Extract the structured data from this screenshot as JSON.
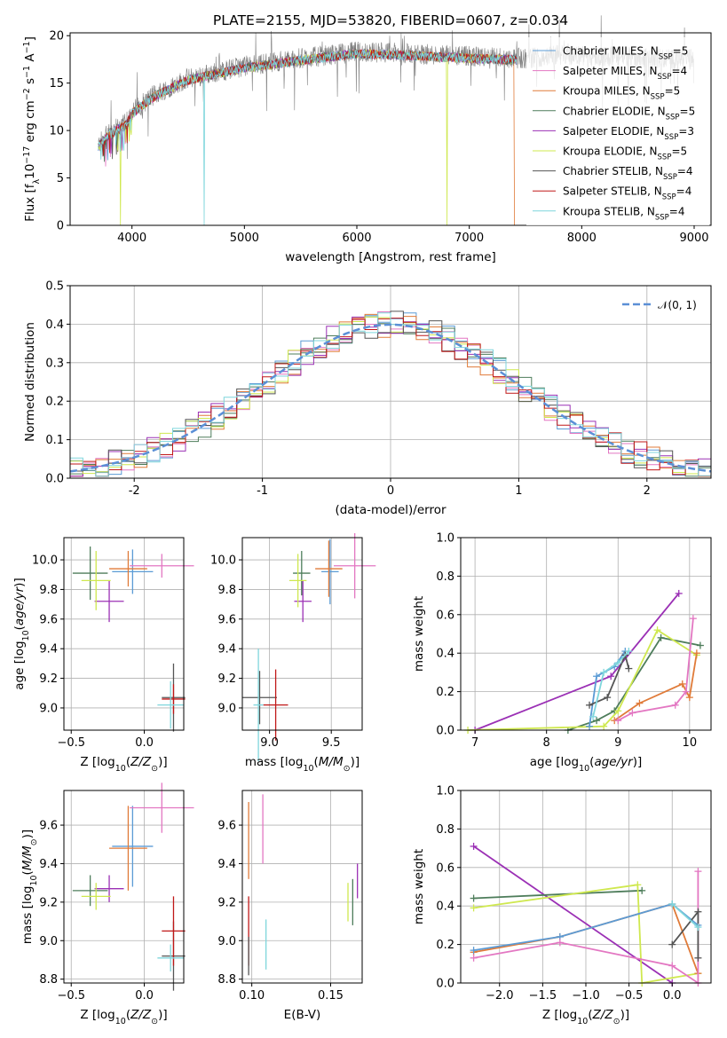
{
  "title": "PLATE=2155, MJD=53820, FIBERID=0607, z=0.034",
  "colors": {
    "chabrier_miles": "#5b9bd5",
    "salpeter_miles": "#e377c2",
    "kroupa_miles": "#e07b39",
    "chabrier_elodie": "#4e7d5b",
    "salpeter_elodie": "#9b30b5",
    "kroupa_elodie": "#cfe84f",
    "chabrier_stelib": "#555555",
    "salpeter_stelib": "#c01818",
    "kroupa_stelib": "#7fd6dc",
    "gaussian": "#5b8fd6"
  },
  "chart_data": [
    {
      "id": "spectrum",
      "type": "line",
      "xlabel": "wavelength [Angstrom, rest frame]",
      "ylabel": "Flux [f_λ10^-17 erg cm^-2 s^-1 A^-1]",
      "xlim": [
        3450,
        9150
      ],
      "ylim": [
        0,
        20.3
      ],
      "xticks": [
        4000,
        5000,
        6000,
        7000,
        8000,
        9000
      ],
      "yticks": [
        0,
        5,
        10,
        15,
        20
      ],
      "grid": false,
      "legend_position": "right",
      "legend": [
        {
          "key": "chabrier_miles",
          "label": "Chabrier MILES, N",
          "sub": "SSP",
          "tail": "=5"
        },
        {
          "key": "salpeter_miles",
          "label": "Salpeter MILES, N",
          "sub": "SSP",
          "tail": "=4"
        },
        {
          "key": "kroupa_miles",
          "label": "Kroupa MILES, N",
          "sub": "SSP",
          "tail": "=5"
        },
        {
          "key": "chabrier_elodie",
          "label": "Chabrier ELODIE, N",
          "sub": "SSP",
          "tail": "=5"
        },
        {
          "key": "salpeter_elodie",
          "label": "Salpeter ELODIE, N",
          "sub": "SSP",
          "tail": "=3"
        },
        {
          "key": "kroupa_elodie",
          "label": "Kroupa ELODIE, N",
          "sub": "SSP",
          "tail": "=5"
        },
        {
          "key": "chabrier_stelib",
          "label": "Chabrier STELIB, N",
          "sub": "SSP",
          "tail": "=4"
        },
        {
          "key": "salpeter_stelib",
          "label": "Salpeter STELIB, N",
          "sub": "SSP",
          "tail": "=4"
        },
        {
          "key": "kroupa_stelib",
          "label": "Kroupa STELIB, N",
          "sub": "SSP",
          "tail": "=4"
        }
      ],
      "continuum": [
        [
          3700,
          8.5
        ],
        [
          3800,
          9.8
        ],
        [
          3950,
          10.8
        ],
        [
          4000,
          12.0
        ],
        [
          4200,
          13.8
        ],
        [
          4500,
          15.5
        ],
        [
          5000,
          16.8
        ],
        [
          5500,
          17.6
        ],
        [
          6000,
          18.3
        ],
        [
          6500,
          18.1
        ],
        [
          7000,
          17.8
        ],
        [
          7500,
          17.6
        ],
        [
          7800,
          18.0
        ],
        [
          8000,
          17.9
        ],
        [
          8500,
          17.7
        ],
        [
          9000,
          17.5
        ]
      ],
      "model_range": [
        3700,
        7420
      ],
      "observed_range": [
        3700,
        9000
      ],
      "dropouts": [
        {
          "key": "kroupa_elodie",
          "from": 3900,
          "to": 3900
        },
        {
          "key": "kroupa_stelib",
          "from": 4640,
          "to": 4640
        },
        {
          "key": "kroupa_elodie",
          "from": 6800,
          "to": 6800
        },
        {
          "key": "kroupa_miles",
          "from": 7400,
          "to": 7440
        }
      ]
    },
    {
      "id": "residuals",
      "type": "histogram",
      "xlabel": "(data-model)/error",
      "ylabel": "Normed distribution",
      "xlim": [
        -2.5,
        2.5
      ],
      "ylim": [
        0,
        0.5
      ],
      "xticks": [
        -2,
        -1,
        0,
        1,
        2
      ],
      "yticks": [
        0.0,
        0.1,
        0.2,
        0.3,
        0.4,
        0.5
      ],
      "grid": true,
      "legend_position": "top-right",
      "legend_label": "𝒩(0, 1)",
      "bin_width": 0.1,
      "series_keys": [
        "chabrier_miles",
        "salpeter_miles",
        "kroupa_miles",
        "chabrier_elodie",
        "salpeter_elodie",
        "kroupa_elodie",
        "chabrier_stelib",
        "salpeter_stelib",
        "kroupa_stelib"
      ]
    },
    {
      "id": "age_vs_Z",
      "type": "errorbar",
      "xlabel": "Z [log10(Z/Z⊙)]",
      "ylabel": "age  [log10(age/yr)]",
      "xlim": [
        -0.55,
        0.27
      ],
      "ylim": [
        8.85,
        10.15
      ],
      "xticks": [
        -0.5,
        0.0
      ],
      "xticklabels": [
        "−0.5",
        "0.0"
      ],
      "yticks": [
        9.0,
        9.2,
        9.4,
        9.6,
        9.8,
        10.0
      ],
      "grid": true,
      "points": [
        {
          "key": "chabrier_miles",
          "x": -0.08,
          "xerr": 0.14,
          "y": 9.92,
          "yerr": 0.15
        },
        {
          "key": "salpeter_miles",
          "x": 0.12,
          "xerr": 0.22,
          "y": 9.96,
          "yerr": 0.08
        },
        {
          "key": "kroupa_miles",
          "x": -0.11,
          "xerr": 0.13,
          "y": 9.94,
          "yerr": 0.12
        },
        {
          "key": "chabrier_elodie",
          "x": -0.37,
          "xerr": 0.12,
          "y": 9.91,
          "yerr": 0.18
        },
        {
          "key": "salpeter_elodie",
          "x": -0.24,
          "xerr": 0.1,
          "y": 9.72,
          "yerr": 0.14
        },
        {
          "key": "kroupa_elodie",
          "x": -0.33,
          "xerr": 0.1,
          "y": 9.86,
          "yerr": 0.2
        },
        {
          "key": "chabrier_stelib",
          "x": 0.2,
          "xerr": 0.08,
          "y": 9.07,
          "yerr": 0.23
        },
        {
          "key": "salpeter_stelib",
          "x": 0.2,
          "xerr": 0.08,
          "y": 9.06,
          "yerr": 0.1
        },
        {
          "key": "kroupa_stelib",
          "x": 0.18,
          "xerr": 0.09,
          "y": 9.02,
          "yerr": 0.16
        }
      ]
    },
    {
      "id": "age_vs_mass",
      "type": "errorbar",
      "xlabel": "mass [log10(M/M⊙)]",
      "ylabel": "",
      "xlim": [
        8.78,
        9.75
      ],
      "ylim": [
        8.85,
        10.15
      ],
      "xticks": [
        9.0,
        9.5
      ],
      "xticklabels": [
        "9.0",
        "9.5"
      ],
      "yticks": [
        9.0,
        9.2,
        9.4,
        9.6,
        9.8,
        10.0
      ],
      "grid": true,
      "points": [
        {
          "key": "chabrier_miles",
          "x": 9.49,
          "xerr": 0.07,
          "y": 9.92,
          "yerr": 0.22
        },
        {
          "key": "salpeter_miles",
          "x": 9.69,
          "xerr": 0.17,
          "y": 9.96,
          "yerr": 0.22
        },
        {
          "key": "kroupa_miles",
          "x": 9.48,
          "xerr": 0.11,
          "y": 9.94,
          "yerr": 0.19
        },
        {
          "key": "chabrier_elodie",
          "x": 9.26,
          "xerr": 0.07,
          "y": 9.91,
          "yerr": 0.15
        },
        {
          "key": "salpeter_elodie",
          "x": 9.27,
          "xerr": 0.07,
          "y": 9.72,
          "yerr": 0.14
        },
        {
          "key": "kroupa_elodie",
          "x": 9.23,
          "xerr": 0.07,
          "y": 9.86,
          "yerr": 0.18
        },
        {
          "key": "chabrier_stelib",
          "x": 8.92,
          "xerr": 0.14,
          "y": 9.07,
          "yerr": 0.18
        },
        {
          "key": "salpeter_stelib",
          "x": 9.05,
          "xerr": 0.1,
          "y": 9.02,
          "yerr": 0.24
        },
        {
          "key": "kroupa_stelib",
          "x": 8.91,
          "xerr": 0.04,
          "y": 9.02,
          "yerr": 0.38
        }
      ]
    },
    {
      "id": "massweight_vs_age",
      "type": "line",
      "xlabel": "age  [log10(age/yr)]",
      "ylabel": "mass weight",
      "xlim": [
        6.8,
        10.3
      ],
      "ylim": [
        0,
        1.0
      ],
      "xticks": [
        7,
        8,
        9,
        10
      ],
      "xticklabels": [
        "7",
        "8",
        "9",
        "10"
      ],
      "yticks": [
        0.0,
        0.2,
        0.4,
        0.6,
        0.8,
        1.0
      ],
      "grid": true,
      "series": [
        {
          "key": "salpeter_elodie",
          "x": [
            7.0,
            8.9,
            9.85
          ],
          "y": [
            0.0,
            0.28,
            0.71
          ]
        },
        {
          "key": "chabrier_elodie",
          "x": [
            8.3,
            8.7,
            8.95,
            9.6,
            10.15
          ],
          "y": [
            0.0,
            0.05,
            0.1,
            0.48,
            0.44
          ]
        },
        {
          "key": "kroupa_elodie",
          "x": [
            6.9,
            8.8,
            9.0,
            9.55,
            10.1
          ],
          "y": [
            0.0,
            0.02,
            0.1,
            0.52,
            0.39
          ]
        },
        {
          "key": "chabrier_miles",
          "x": [
            8.6,
            8.7,
            8.95,
            9.1
          ],
          "y": [
            0.02,
            0.28,
            0.33,
            0.41
          ]
        },
        {
          "key": "kroupa_miles",
          "x": [
            8.95,
            9.3,
            9.9,
            10.0,
            10.1
          ],
          "y": [
            0.05,
            0.14,
            0.24,
            0.17,
            0.4
          ]
        },
        {
          "key": "salpeter_miles",
          "x": [
            9.0,
            9.2,
            9.8,
            9.95,
            10.05
          ],
          "y": [
            0.05,
            0.09,
            0.13,
            0.2,
            0.58
          ]
        },
        {
          "key": "chabrier_stelib",
          "x": [
            8.6,
            8.85,
            9.1,
            9.15
          ],
          "y": [
            0.13,
            0.17,
            0.39,
            0.32
          ]
        },
        {
          "key": "kroupa_stelib",
          "x": [
            8.65,
            8.8,
            9.0,
            9.15
          ],
          "y": [
            0.07,
            0.3,
            0.35,
            0.41
          ]
        }
      ]
    },
    {
      "id": "mass_vs_Z",
      "type": "errorbar",
      "xlabel": "Z [log10(Z/Z⊙)]",
      "ylabel": "mass [log10(M/M⊙)]",
      "xlim": [
        -0.55,
        0.27
      ],
      "ylim": [
        8.78,
        9.78
      ],
      "xticks": [
        -0.5,
        0.0
      ],
      "xticklabels": [
        "−0.5",
        "0.0"
      ],
      "yticks": [
        8.8,
        9.0,
        9.2,
        9.4,
        9.6
      ],
      "grid": true,
      "points": [
        {
          "key": "chabrier_miles",
          "x": -0.08,
          "xerr": 0.14,
          "y": 9.49,
          "yerr": 0.21
        },
        {
          "key": "salpeter_miles",
          "x": 0.12,
          "xerr": 0.22,
          "y": 9.69,
          "yerr": 0.13
        },
        {
          "key": "kroupa_miles",
          "x": -0.11,
          "xerr": 0.13,
          "y": 9.48,
          "yerr": 0.22
        },
        {
          "key": "chabrier_elodie",
          "x": -0.37,
          "xerr": 0.12,
          "y": 9.26,
          "yerr": 0.08
        },
        {
          "key": "salpeter_elodie",
          "x": -0.24,
          "xerr": 0.1,
          "y": 9.27,
          "yerr": 0.07
        },
        {
          "key": "kroupa_elodie",
          "x": -0.33,
          "xerr": 0.1,
          "y": 9.23,
          "yerr": 0.07
        },
        {
          "key": "chabrier_stelib",
          "x": 0.2,
          "xerr": 0.08,
          "y": 8.92,
          "yerr": 0.18
        },
        {
          "key": "salpeter_stelib",
          "x": 0.2,
          "xerr": 0.08,
          "y": 9.05,
          "yerr": 0.18
        },
        {
          "key": "kroupa_stelib",
          "x": 0.18,
          "xerr": 0.09,
          "y": 8.91,
          "yerr": 0.07
        }
      ]
    },
    {
      "id": "ebv",
      "type": "errorbar",
      "xlabel": "E(B-V)",
      "ylabel": "",
      "xlim": [
        0.094,
        0.17
      ],
      "ylim": [
        8.78,
        9.78
      ],
      "xticks": [
        0.1,
        0.15
      ],
      "xticklabels": [
        "0.10",
        "0.15"
      ],
      "yticks": [
        8.8,
        9.0,
        9.2,
        9.4,
        9.6
      ],
      "grid": true,
      "points": [
        {
          "key": "kroupa_miles",
          "x": 0.098,
          "xerr": 0.0,
          "y": 9.52,
          "yerr": 0.2
        },
        {
          "key": "salpeter_miles",
          "x": 0.107,
          "xerr": 0.0,
          "y": 9.58,
          "yerr": 0.18
        },
        {
          "key": "salpeter_stelib",
          "x": 0.098,
          "xerr": 0.0,
          "y": 9.05,
          "yerr": 0.18
        },
        {
          "key": "chabrier_stelib",
          "x": 0.098,
          "xerr": 0.0,
          "y": 8.92,
          "yerr": 0.1
        },
        {
          "key": "kroupa_stelib",
          "x": 0.109,
          "xerr": 0.0,
          "y": 8.98,
          "yerr": 0.13
        },
        {
          "key": "kroupa_elodie",
          "x": 0.161,
          "xerr": 0.0,
          "y": 9.2,
          "yerr": 0.1
        },
        {
          "key": "chabrier_elodie",
          "x": 0.164,
          "xerr": 0.0,
          "y": 9.2,
          "yerr": 0.12
        },
        {
          "key": "salpeter_elodie",
          "x": 0.167,
          "xerr": 0.0,
          "y": 9.31,
          "yerr": 0.09
        }
      ]
    },
    {
      "id": "massweight_vs_Z",
      "type": "line",
      "xlabel": "Z [log10(Z/Z⊙)]",
      "ylabel": "mass weight",
      "xlim": [
        -2.45,
        0.45
      ],
      "ylim": [
        0,
        1.0
      ],
      "xticks": [
        -2.0,
        -1.5,
        -1.0,
        -0.5,
        0.0
      ],
      "xticklabels": [
        "−2.0",
        "−1.5",
        "−1.0",
        "−0.5",
        "0.0"
      ],
      "yticks": [
        0.0,
        0.2,
        0.4,
        0.6,
        0.8,
        1.0
      ],
      "grid": true,
      "series": [
        {
          "key": "salpeter_elodie",
          "x": [
            -2.3,
            0.0
          ],
          "y": [
            0.71,
            0.0
          ]
        },
        {
          "key": "chabrier_elodie",
          "x": [
            -2.3,
            -0.35
          ],
          "y": [
            0.44,
            0.48
          ]
        },
        {
          "key": "kroupa_elodie",
          "x": [
            -2.3,
            -0.4,
            -0.35,
            0.3
          ],
          "y": [
            0.39,
            0.51,
            0.0,
            0.05
          ]
        },
        {
          "key": "kroupa_miles",
          "x": [
            -2.3,
            -1.3,
            0.0,
            0.3
          ],
          "y": [
            0.16,
            0.24,
            0.41,
            0.05
          ]
        },
        {
          "key": "chabrier_miles",
          "x": [
            -2.3,
            -1.3,
            0.0,
            0.3
          ],
          "y": [
            0.17,
            0.24,
            0.41,
            0.3
          ]
        },
        {
          "key": "salpeter_miles",
          "x": [
            -2.3,
            -1.3,
            0.0,
            0.3,
            0.3
          ],
          "y": [
            0.13,
            0.21,
            0.09,
            0.0,
            0.58
          ]
        },
        {
          "key": "chabrier_stelib",
          "x": [
            0.0,
            0.3,
            0.3
          ],
          "y": [
            0.2,
            0.37,
            0.13
          ]
        },
        {
          "key": "kroupa_stelib",
          "x": [
            0.0,
            0.3
          ],
          "y": [
            0.41,
            0.29
          ]
        }
      ]
    }
  ]
}
